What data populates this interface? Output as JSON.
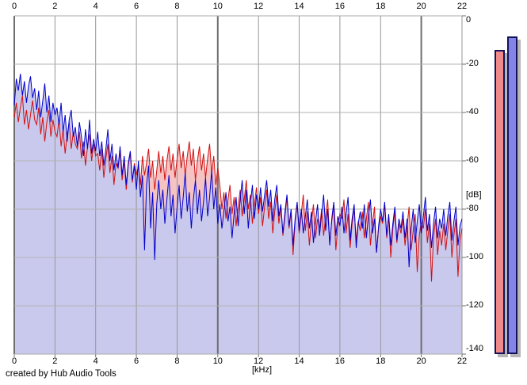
{
  "chart_data": {
    "type": "line",
    "title": "",
    "x_unit_label": "[kHz]",
    "y_unit_label": "[dB]",
    "x_range": [
      0,
      22
    ],
    "y_range": [
      0,
      -140
    ],
    "x_ticks": [
      0,
      2,
      4,
      6,
      8,
      10,
      12,
      14,
      16,
      18,
      20,
      22
    ],
    "x_major_ticks": [
      0,
      10,
      20
    ],
    "y_ticks": [
      0,
      -20,
      -40,
      -60,
      -80,
      -100,
      -120,
      -140
    ],
    "grid": true,
    "legend": "none",
    "f_start": 0,
    "f_step_khz": 0.1,
    "series": [
      {
        "name": "spectrum-red",
        "color": "#d41010",
        "fill": "#f5c3c3",
        "values_db": [
          -42,
          -36,
          -44,
          -38,
          -33,
          -45,
          -39,
          -47,
          -41,
          -35,
          -43,
          -45,
          -38,
          -49,
          -42,
          -52,
          -44,
          -39,
          -50,
          -43,
          -48,
          -50,
          -43,
          -54,
          -47,
          -57,
          -49,
          -44,
          -55,
          -48,
          -53,
          -55,
          -48,
          -59,
          -52,
          -62,
          -54,
          -49,
          -60,
          -53,
          -58,
          -57,
          -64,
          -55,
          -67,
          -59,
          -53,
          -65,
          -58,
          -70,
          -61,
          -63,
          -56,
          -68,
          -60,
          -72,
          -62,
          -57,
          -69,
          -61,
          -66,
          -62,
          -70,
          -58,
          -66,
          -61,
          -55,
          -67,
          -60,
          -72,
          -64,
          -56,
          -65,
          -58,
          -68,
          -60,
          -54,
          -64,
          -57,
          -67,
          -59,
          -53,
          -63,
          -56,
          -66,
          -58,
          -52,
          -62,
          -55,
          -68,
          -60,
          -54,
          -64,
          -57,
          -67,
          -59,
          -53,
          -65,
          -58,
          -70,
          -63,
          -70,
          -80,
          -73,
          -84,
          -76,
          -70,
          -82,
          -75,
          -87,
          -79,
          -72,
          -83,
          -76,
          -68,
          -80,
          -74,
          -86,
          -78,
          -71,
          -82,
          -75,
          -87,
          -79,
          -72,
          -84,
          -77,
          -90,
          -81,
          -74,
          -86,
          -79,
          -91,
          -83,
          -75,
          -88,
          -81,
          -99,
          -85,
          -78,
          -90,
          -82,
          -74,
          -89,
          -81,
          -95,
          -85,
          -78,
          -92,
          -84,
          -88,
          -80,
          -91,
          -83,
          -76,
          -94,
          -85,
          -79,
          -97,
          -87,
          -82,
          -84,
          -76,
          -90,
          -82,
          -96,
          -86,
          -80,
          -93,
          -85,
          -89,
          -81,
          -92,
          -84,
          -77,
          -95,
          -86,
          -79,
          -98,
          -88,
          -83,
          -86,
          -78,
          -92,
          -83,
          -100,
          -88,
          -81,
          -94,
          -86,
          -90,
          -84,
          -95,
          -87,
          -79,
          -97,
          -89,
          -82,
          -106,
          -91,
          -85,
          -88,
          -80,
          -94,
          -86,
          -110,
          -92,
          -84,
          -99,
          -89,
          -95,
          -86,
          -97,
          -89,
          -82,
          -100,
          -91,
          -84,
          -108,
          -93,
          -88
        ]
      },
      {
        "name": "spectrum-blue",
        "color": "#0000cc",
        "fill": "#c9c9ee",
        "values_db": [
          -37,
          -26,
          -31,
          -24,
          -33,
          -27,
          -36,
          -29,
          -25,
          -34,
          -30,
          -39,
          -31,
          -42,
          -35,
          -28,
          -40,
          -33,
          -44,
          -36,
          -41,
          -38,
          -45,
          -36,
          -48,
          -41,
          -52,
          -43,
          -39,
          -50,
          -46,
          -54,
          -44,
          -50,
          -58,
          -47,
          -55,
          -43,
          -57,
          -51,
          -56,
          -48,
          -58,
          -52,
          -62,
          -55,
          -47,
          -60,
          -53,
          -64,
          -57,
          -63,
          -54,
          -66,
          -58,
          -70,
          -61,
          -56,
          -68,
          -62,
          -72,
          -60,
          -75,
          -66,
          -97,
          -70,
          -62,
          -88,
          -73,
          -101,
          -78,
          -68,
          -80,
          -72,
          -86,
          -76,
          -66,
          -83,
          -74,
          -90,
          -79,
          -70,
          -84,
          -75,
          -65,
          -81,
          -73,
          -88,
          -76,
          -68,
          -82,
          -72,
          -85,
          -77,
          -67,
          -83,
          -75,
          -64,
          -80,
          -71,
          -86,
          -78,
          -88,
          -81,
          -73,
          -85,
          -79,
          -92,
          -82,
          -75,
          -87,
          -76,
          -68,
          -82,
          -72,
          -88,
          -78,
          -70,
          -84,
          -74,
          -80,
          -71,
          -81,
          -74,
          -68,
          -79,
          -72,
          -85,
          -76,
          -70,
          -83,
          -78,
          -90,
          -81,
          -74,
          -87,
          -80,
          -95,
          -84,
          -77,
          -89,
          -80,
          -90,
          -83,
          -76,
          -88,
          -81,
          -94,
          -85,
          -78,
          -91,
          -82,
          -74,
          -89,
          -80,
          -95,
          -84,
          -77,
          -91,
          -83,
          -87,
          -79,
          -90,
          -82,
          -75,
          -93,
          -84,
          -78,
          -96,
          -86,
          -81,
          -88,
          -78,
          -92,
          -83,
          -76,
          -90,
          -84,
          -98,
          -87,
          -80,
          -85,
          -77,
          -91,
          -82,
          -95,
          -86,
          -79,
          -93,
          -84,
          -88,
          -81,
          -92,
          -84,
          -104,
          -88,
          -80,
          -94,
          -85,
          -78,
          -90,
          -83,
          -75,
          -89,
          -82,
          -96,
          -86,
          -79,
          -92,
          -84,
          -88,
          -80,
          -91,
          -83,
          -77,
          -93,
          -85,
          -79,
          -95,
          -87,
          -84
        ]
      }
    ]
  },
  "meters": {
    "items": [
      {
        "name": "meter-red",
        "value_db": -14,
        "fill": "#f08a8a",
        "border": "#12125a"
      },
      {
        "name": "meter-blue",
        "value_db": -8.5,
        "fill": "#8383e8",
        "border": "#12125a"
      }
    ],
    "shadow_color": "#b6b6b6"
  },
  "footer": {
    "credit": "created by Hub Audio Tools"
  },
  "colors": {
    "background": "#ffffff",
    "grid_h": "#b3b3b3",
    "grid_v_minor": "#969696",
    "grid_v_major": "#6e6e6e",
    "axis_line": "#a9a9a9",
    "tick_text": "#000000"
  }
}
